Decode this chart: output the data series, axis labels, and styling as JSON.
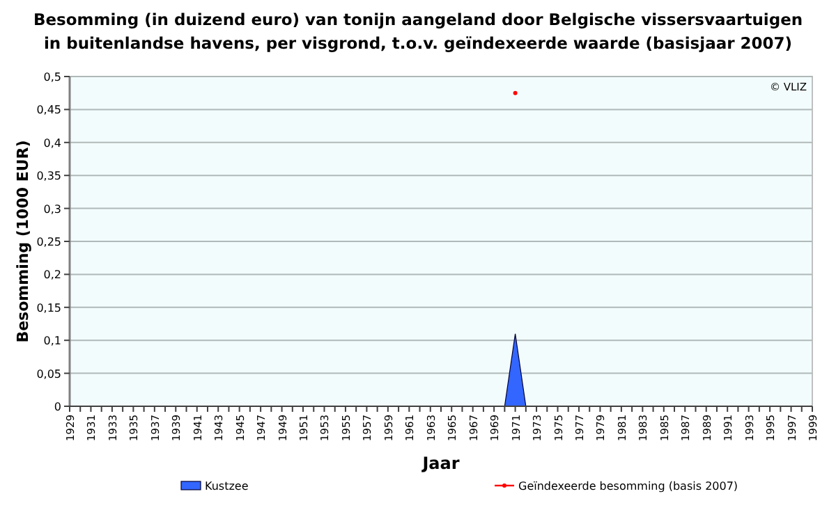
{
  "chart_data": {
    "type": "area",
    "title": "Besomming (in duizend euro) van tonijn aangeland door Belgische vissersvaartuigen\nin buitenlandse havens, per visgrond, t.o.v. geïndexeerde waarde (basisjaar 2007)",
    "xlabel": "Jaar",
    "ylabel": "Besomming (1000 EUR)",
    "annotations": [
      "© VLIZ"
    ],
    "categories": [
      "1929",
      null,
      "1931",
      null,
      "1933",
      null,
      "1935",
      null,
      "1937",
      null,
      "1939",
      null,
      "1941",
      null,
      "1943",
      null,
      "1945",
      null,
      "1947",
      null,
      "1949",
      null,
      "1951",
      null,
      "1953",
      null,
      "1955",
      null,
      "1957",
      null,
      "1959",
      null,
      "1961",
      null,
      "1963",
      null,
      "1965",
      null,
      "1967",
      null,
      "1969",
      null,
      "1971",
      null,
      "1973",
      null,
      "1975",
      null,
      "1977",
      null,
      "1979",
      null,
      "1981",
      null,
      "1983",
      null,
      "1985",
      null,
      "1987",
      null,
      "1989",
      null,
      "1991",
      null,
      "1993",
      null,
      "1995",
      null,
      "1997",
      null,
      "1999"
    ],
    "series": [
      {
        "name": "Kustzee",
        "color": "#3366ff",
        "values": [
          null,
          null,
          null,
          null,
          null,
          null,
          null,
          null,
          null,
          null,
          null,
          null,
          null,
          null,
          null,
          null,
          null,
          null,
          null,
          null,
          null,
          null,
          null,
          null,
          null,
          null,
          null,
          null,
          null,
          null,
          null,
          null,
          null,
          null,
          null,
          null,
          null,
          null,
          null,
          null,
          null,
          0,
          0.11,
          0,
          null,
          null,
          null,
          null,
          null,
          null,
          null,
          null,
          null,
          null,
          null,
          null,
          null,
          null,
          null,
          null,
          null,
          null,
          null,
          null,
          null,
          null,
          null,
          null,
          null,
          null,
          null
        ]
      },
      {
        "name": "Geïndexeerde besomming (basis 2007)",
        "type": "line",
        "marker": "circle",
        "color": "#ff0000",
        "values": [
          null,
          null,
          null,
          null,
          null,
          null,
          null,
          null,
          null,
          null,
          null,
          null,
          null,
          null,
          null,
          null,
          null,
          null,
          null,
          null,
          null,
          null,
          null,
          null,
          null,
          null,
          null,
          null,
          null,
          null,
          null,
          null,
          null,
          null,
          null,
          null,
          null,
          null,
          null,
          null,
          null,
          null,
          0.475,
          null,
          null,
          null,
          null,
          null,
          null,
          null,
          null,
          null,
          null,
          null,
          null,
          null,
          null,
          null,
          null,
          null,
          null,
          null,
          null,
          null,
          null,
          null,
          null,
          null,
          null,
          null,
          null
        ]
      }
    ],
    "ylim": [
      0,
      0.5
    ],
    "yticks": [
      0,
      {
        "value": 0.05,
        "label": "0,05"
      },
      {
        "value": 0.1,
        "label": "0,1"
      },
      {
        "value": 0.15,
        "label": "0,15"
      },
      {
        "value": 0.2,
        "label": "0,2"
      },
      {
        "value": 0.25,
        "label": "0,25"
      },
      {
        "value": 0.3,
        "label": "0,3"
      },
      {
        "value": 0.35,
        "label": "0,35"
      },
      {
        "value": 0.4,
        "label": "0,4"
      },
      {
        "value": 0.45,
        "label": "0,45"
      },
      {
        "value": 0.5,
        "label": "0,5"
      }
    ],
    "grid": "y",
    "legend": "bottom"
  }
}
